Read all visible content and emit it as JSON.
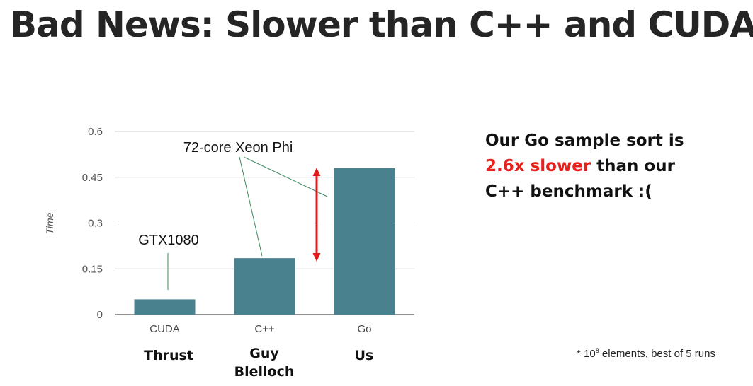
{
  "slide": {
    "title": "Bad News: Slower than C++ and CUDA"
  },
  "chart_data": {
    "type": "bar",
    "categories": [
      "CUDA",
      "C++",
      "Go"
    ],
    "values": [
      0.05,
      0.185,
      0.48
    ],
    "ylabel": "Time",
    "ylim": [
      0,
      0.6
    ],
    "yticks": [
      "0",
      "0.15",
      "0.3",
      "0.45",
      "0.6"
    ],
    "grid": true,
    "bar_color": "#4a818f",
    "annotations": {
      "gpu": "GTX1080",
      "cpu": "72-core Xeon Phi"
    }
  },
  "sublabels": {
    "thrust": "Thrust",
    "guy": "Guy",
    "blelloch": "Blelloch",
    "us": "Us"
  },
  "side_text": {
    "line1": "Our Go sample sort is",
    "highlight": "2.6x slower",
    "line2_rest": " than our",
    "line3": "C++ benchmark :("
  },
  "footnote": {
    "prefix": "* 10",
    "exponent": "8",
    "suffix": " elements, best of 5 runs"
  },
  "colors": {
    "accent_red": "#e8201c",
    "arrow_red": "#e51b1b"
  }
}
